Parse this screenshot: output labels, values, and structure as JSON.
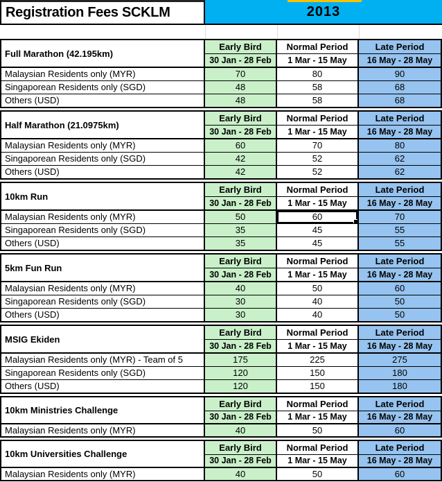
{
  "header": {
    "title": "Registration Fees SCKLM",
    "year": "2013"
  },
  "columns": [
    {
      "label": "Early Bird",
      "dates": "30 Jan - 28 Feb",
      "fill": "#C9F0C9"
    },
    {
      "label": "Normal Period",
      "dates": "1 Mar - 15 May",
      "fill": "#FFFFFF"
    },
    {
      "label": "Late Period",
      "dates": "16 May - 28 May",
      "fill": "#96C3EF"
    }
  ],
  "sections": [
    {
      "name": "Full Marathon (42.195km)",
      "rows": [
        {
          "label": "Malaysian Residents only (MYR)",
          "values": [
            "70",
            "80",
            "90"
          ]
        },
        {
          "label": "Singaporean Residents only (SGD)",
          "values": [
            "48",
            "58",
            "68"
          ]
        },
        {
          "label": "Others (USD)",
          "values": [
            "48",
            "58",
            "68"
          ]
        }
      ]
    },
    {
      "name": "Half Marathon (21.0975km)",
      "rows": [
        {
          "label": "Malaysian Residents only (MYR)",
          "values": [
            "60",
            "70",
            "80"
          ]
        },
        {
          "label": "Singaporean Residents only (SGD)",
          "values": [
            "42",
            "52",
            "62"
          ]
        },
        {
          "label": "Others (USD)",
          "values": [
            "42",
            "52",
            "62"
          ]
        }
      ]
    },
    {
      "name": "10km Run",
      "rows": [
        {
          "label": "Malaysian Residents only (MYR)",
          "values": [
            "50",
            "60",
            "70"
          ]
        },
        {
          "label": "Singaporean Residents only (SGD)",
          "values": [
            "35",
            "45",
            "55"
          ]
        },
        {
          "label": "Others (USD)",
          "values": [
            "35",
            "45",
            "55"
          ]
        }
      ]
    },
    {
      "name": "5km Fun Run",
      "rows": [
        {
          "label": "Malaysian Residents only (MYR)",
          "values": [
            "40",
            "50",
            "60"
          ]
        },
        {
          "label": "Singaporean Residents only (SGD)",
          "values": [
            "30",
            "40",
            "50"
          ]
        },
        {
          "label": "Others (USD)",
          "values": [
            "30",
            "40",
            "50"
          ]
        }
      ]
    },
    {
      "name": "MSIG Ekiden",
      "rows": [
        {
          "label": "Malaysian Residents only (MYR) - Team of 5",
          "values": [
            "175",
            "225",
            "275"
          ]
        },
        {
          "label": "Singaporean Residents only (SGD)",
          "values": [
            "120",
            "150",
            "180"
          ]
        },
        {
          "label": "Others (USD)",
          "values": [
            "120",
            "150",
            "180"
          ]
        }
      ]
    },
    {
      "name": "10km Ministries Challenge",
      "rows": [
        {
          "label": "Malaysian Residents only (MYR)",
          "values": [
            "40",
            "50",
            "60"
          ]
        }
      ]
    },
    {
      "name": "10km Universities Challenge",
      "rows": [
        {
          "label": "Malaysian Residents only (MYR)",
          "values": [
            "40",
            "50",
            "60"
          ]
        }
      ]
    }
  ],
  "selection": {
    "section_index": 2,
    "row_index": 0,
    "column_index": 1,
    "value": "60"
  },
  "colors": {
    "year_banner": "#00B0F0",
    "tab_marker": "#FFC000",
    "early_bird_fill": "#C9F0C9",
    "normal_period_fill": "#FFFFFF",
    "late_period_fill": "#96C3EF",
    "grid_border": "#000000",
    "gridline_light": "#D9D9D9"
  }
}
